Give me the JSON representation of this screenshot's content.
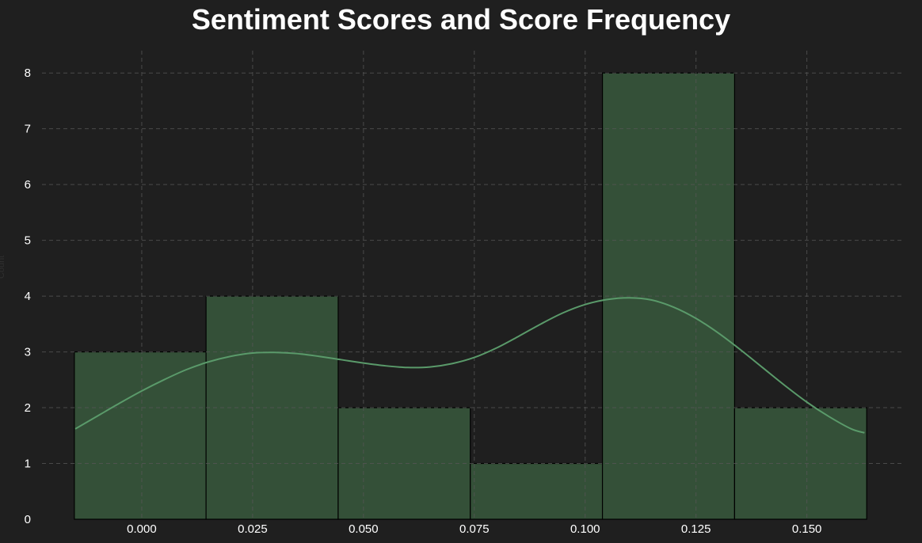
{
  "chart_data": {
    "type": "bar",
    "title": "Sentiment Scores and Score Frequency",
    "xlabel": "",
    "ylabel": "Count",
    "bins": [
      {
        "x_start": -0.0152,
        "x_end": 0.0145,
        "count": 3
      },
      {
        "x_start": 0.0145,
        "x_end": 0.0443,
        "count": 4
      },
      {
        "x_start": 0.0443,
        "x_end": 0.0741,
        "count": 2
      },
      {
        "x_start": 0.0741,
        "x_end": 0.1039,
        "count": 1
      },
      {
        "x_start": 0.1039,
        "x_end": 0.1337,
        "count": 8
      },
      {
        "x_start": 0.1337,
        "x_end": 0.1635,
        "count": 2
      }
    ],
    "kde": {
      "x": [
        -0.015,
        -0.01,
        -0.005,
        0.0,
        0.005,
        0.01,
        0.015,
        0.02,
        0.025,
        0.03,
        0.035,
        0.04,
        0.045,
        0.05,
        0.055,
        0.06,
        0.065,
        0.07,
        0.075,
        0.08,
        0.085,
        0.09,
        0.095,
        0.1,
        0.105,
        0.11,
        0.115,
        0.12,
        0.125,
        0.13,
        0.135,
        0.14,
        0.145,
        0.15,
        0.155,
        0.16,
        0.163
      ],
      "y": [
        1.62,
        1.85,
        2.08,
        2.3,
        2.5,
        2.68,
        2.82,
        2.92,
        2.98,
        2.99,
        2.97,
        2.92,
        2.86,
        2.8,
        2.75,
        2.72,
        2.73,
        2.79,
        2.9,
        3.07,
        3.28,
        3.5,
        3.7,
        3.85,
        3.94,
        3.97,
        3.93,
        3.8,
        3.6,
        3.34,
        3.04,
        2.72,
        2.4,
        2.1,
        1.84,
        1.62,
        1.55
      ]
    },
    "xticks": [
      "0.000",
      "0.025",
      "0.050",
      "0.075",
      "0.100",
      "0.125",
      "0.150"
    ],
    "xtick_values": [
      0.0,
      0.025,
      0.05,
      0.075,
      0.1,
      0.125,
      0.15
    ],
    "yticks": [
      "0",
      "1",
      "2",
      "3",
      "4",
      "5",
      "6",
      "7",
      "8"
    ],
    "ytick_values": [
      0,
      1,
      2,
      3,
      4,
      5,
      6,
      7,
      8
    ],
    "xlim": [
      -0.0225,
      0.1715
    ],
    "ylim": [
      0,
      8.4
    ],
    "grid": true,
    "legend": "none",
    "colors": {
      "background": "#1f1f1f",
      "bar_fill": "#345038",
      "bar_edge": "#000000",
      "kde_line": "#5a9a6a",
      "grid": "#555555",
      "text": "#ffffff"
    }
  }
}
